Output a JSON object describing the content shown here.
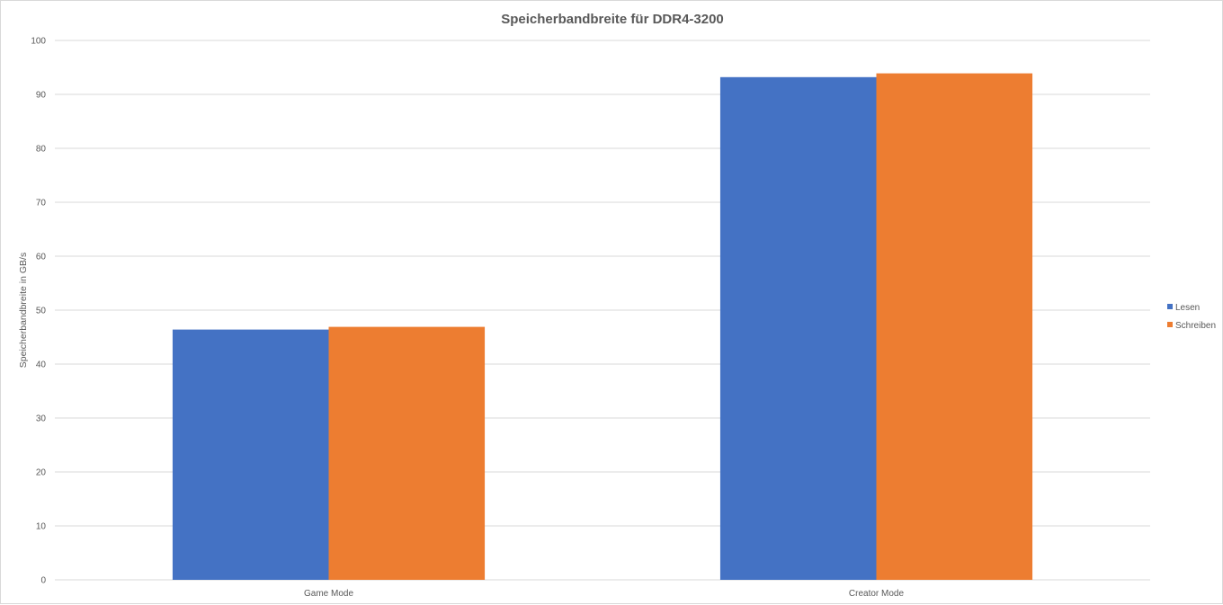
{
  "chart_data": {
    "type": "bar",
    "title": "Speicherbandbreite für DDR4-3200",
    "xlabel": "",
    "ylabel": "Speicherbandbreite in GB/s",
    "categories": [
      "Game Mode",
      "Creator Mode"
    ],
    "series": [
      {
        "name": "Lesen",
        "values": [
          46.4,
          93.2
        ],
        "color": "#4472c4"
      },
      {
        "name": "Schreiben",
        "values": [
          46.9,
          93.9
        ],
        "color": "#ed7d31"
      }
    ],
    "ylim": [
      0,
      100
    ],
    "yticks": [
      0,
      10,
      20,
      30,
      40,
      50,
      60,
      70,
      80,
      90,
      100
    ],
    "grid": true,
    "gridColor": "#d9d9d9",
    "legend_position": "right"
  }
}
